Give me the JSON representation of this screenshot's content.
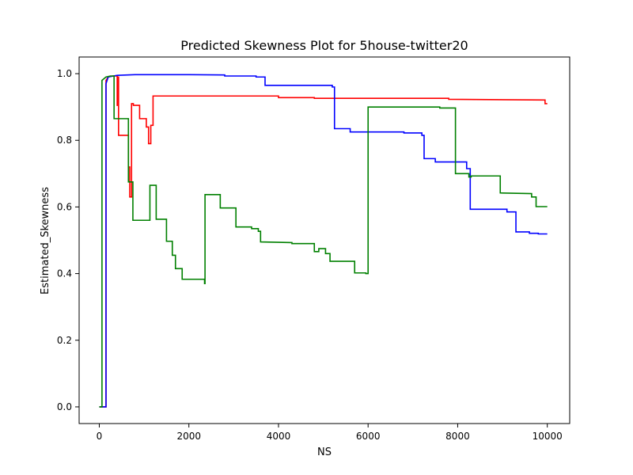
{
  "chart_data": {
    "type": "line",
    "title": "Predicted Skewness Plot for 5house-twitter20",
    "xlabel": "NS",
    "ylabel": "Estimated_Skewness",
    "xlim": [
      -450,
      10500
    ],
    "ylim": [
      -0.05,
      1.05
    ],
    "xticks": [
      0,
      2000,
      4000,
      6000,
      8000,
      10000
    ],
    "xtick_labels": [
      "0",
      "2000",
      "4000",
      "6000",
      "8000",
      "10000"
    ],
    "yticks": [
      0.0,
      0.2,
      0.4,
      0.6,
      0.8,
      1.0
    ],
    "ytick_labels": [
      "0.0",
      "0.2",
      "0.4",
      "0.6",
      "0.8",
      "1.0"
    ],
    "grid": false,
    "legend": false,
    "series": [
      {
        "color": "#ff0000",
        "points": [
          [
            0,
            0.0
          ],
          [
            150,
            0.0
          ],
          [
            150,
            0.98
          ],
          [
            200,
            0.99
          ],
          [
            300,
            0.993
          ],
          [
            400,
            0.993
          ],
          [
            400,
            0.905
          ],
          [
            410,
            0.905
          ],
          [
            410,
            0.99
          ],
          [
            430,
            0.99
          ],
          [
            430,
            0.815
          ],
          [
            650,
            0.815
          ],
          [
            650,
            0.72
          ],
          [
            680,
            0.72
          ],
          [
            680,
            0.63
          ],
          [
            720,
            0.63
          ],
          [
            720,
            0.91
          ],
          [
            760,
            0.91
          ],
          [
            760,
            0.905
          ],
          [
            900,
            0.905
          ],
          [
            900,
            0.865
          ],
          [
            1050,
            0.865
          ],
          [
            1050,
            0.84
          ],
          [
            1100,
            0.84
          ],
          [
            1100,
            0.79
          ],
          [
            1150,
            0.79
          ],
          [
            1150,
            0.845
          ],
          [
            1200,
            0.845
          ],
          [
            1200,
            0.933
          ],
          [
            4000,
            0.933
          ],
          [
            4000,
            0.928
          ],
          [
            4800,
            0.928
          ],
          [
            4800,
            0.926
          ],
          [
            7800,
            0.926
          ],
          [
            7800,
            0.923
          ],
          [
            9950,
            0.921
          ],
          [
            9950,
            0.91
          ],
          [
            10000,
            0.91
          ]
        ]
      },
      {
        "color": "#0000ff",
        "points": [
          [
            0,
            0.0
          ],
          [
            150,
            0.0
          ],
          [
            150,
            0.97
          ],
          [
            200,
            0.99
          ],
          [
            400,
            0.995
          ],
          [
            800,
            0.997
          ],
          [
            2000,
            0.997
          ],
          [
            2800,
            0.996
          ],
          [
            2800,
            0.993
          ],
          [
            3500,
            0.993
          ],
          [
            3500,
            0.99
          ],
          [
            3700,
            0.99
          ],
          [
            3700,
            0.965
          ],
          [
            5200,
            0.965
          ],
          [
            5200,
            0.96
          ],
          [
            5250,
            0.96
          ],
          [
            5250,
            0.835
          ],
          [
            5600,
            0.835
          ],
          [
            5600,
            0.825
          ],
          [
            6800,
            0.825
          ],
          [
            6800,
            0.822
          ],
          [
            7200,
            0.822
          ],
          [
            7200,
            0.815
          ],
          [
            7250,
            0.815
          ],
          [
            7250,
            0.745
          ],
          [
            7500,
            0.745
          ],
          [
            7500,
            0.735
          ],
          [
            8200,
            0.735
          ],
          [
            8200,
            0.715
          ],
          [
            8280,
            0.715
          ],
          [
            8280,
            0.593
          ],
          [
            9100,
            0.593
          ],
          [
            9100,
            0.585
          ],
          [
            9300,
            0.585
          ],
          [
            9300,
            0.525
          ],
          [
            9600,
            0.525
          ],
          [
            9600,
            0.521
          ],
          [
            9800,
            0.521
          ],
          [
            9800,
            0.519
          ],
          [
            10000,
            0.519
          ]
        ]
      },
      {
        "color": "#008000",
        "points": [
          [
            0,
            0.0
          ],
          [
            60,
            0.0
          ],
          [
            60,
            0.98
          ],
          [
            150,
            0.99
          ],
          [
            250,
            0.993
          ],
          [
            330,
            0.993
          ],
          [
            330,
            0.865
          ],
          [
            650,
            0.865
          ],
          [
            650,
            0.675
          ],
          [
            750,
            0.675
          ],
          [
            750,
            0.56
          ],
          [
            1130,
            0.56
          ],
          [
            1130,
            0.665
          ],
          [
            1270,
            0.665
          ],
          [
            1270,
            0.563
          ],
          [
            1500,
            0.563
          ],
          [
            1500,
            0.497
          ],
          [
            1630,
            0.497
          ],
          [
            1630,
            0.455
          ],
          [
            1700,
            0.455
          ],
          [
            1700,
            0.415
          ],
          [
            1850,
            0.415
          ],
          [
            1850,
            0.383
          ],
          [
            2350,
            0.383
          ],
          [
            2350,
            0.37
          ],
          [
            2360,
            0.37
          ],
          [
            2360,
            0.637
          ],
          [
            2700,
            0.637
          ],
          [
            2700,
            0.597
          ],
          [
            3050,
            0.597
          ],
          [
            3050,
            0.54
          ],
          [
            3400,
            0.54
          ],
          [
            3400,
            0.535
          ],
          [
            3550,
            0.535
          ],
          [
            3550,
            0.527
          ],
          [
            3600,
            0.527
          ],
          [
            3600,
            0.495
          ],
          [
            4300,
            0.493
          ],
          [
            4300,
            0.49
          ],
          [
            4800,
            0.49
          ],
          [
            4800,
            0.466
          ],
          [
            4900,
            0.466
          ],
          [
            4900,
            0.475
          ],
          [
            5050,
            0.475
          ],
          [
            5050,
            0.46
          ],
          [
            5150,
            0.46
          ],
          [
            5150,
            0.437
          ],
          [
            5700,
            0.437
          ],
          [
            5700,
            0.402
          ],
          [
            5950,
            0.402
          ],
          [
            5950,
            0.4
          ],
          [
            6000,
            0.4
          ],
          [
            6000,
            0.9
          ],
          [
            7600,
            0.9
          ],
          [
            7600,
            0.897
          ],
          [
            7950,
            0.897
          ],
          [
            7950,
            0.7
          ],
          [
            8250,
            0.7
          ],
          [
            8250,
            0.69
          ],
          [
            8300,
            0.69
          ],
          [
            8300,
            0.693
          ],
          [
            8950,
            0.693
          ],
          [
            8950,
            0.642
          ],
          [
            9650,
            0.64
          ],
          [
            9650,
            0.63
          ],
          [
            9750,
            0.63
          ],
          [
            9750,
            0.601
          ],
          [
            10000,
            0.601
          ]
        ]
      }
    ]
  }
}
